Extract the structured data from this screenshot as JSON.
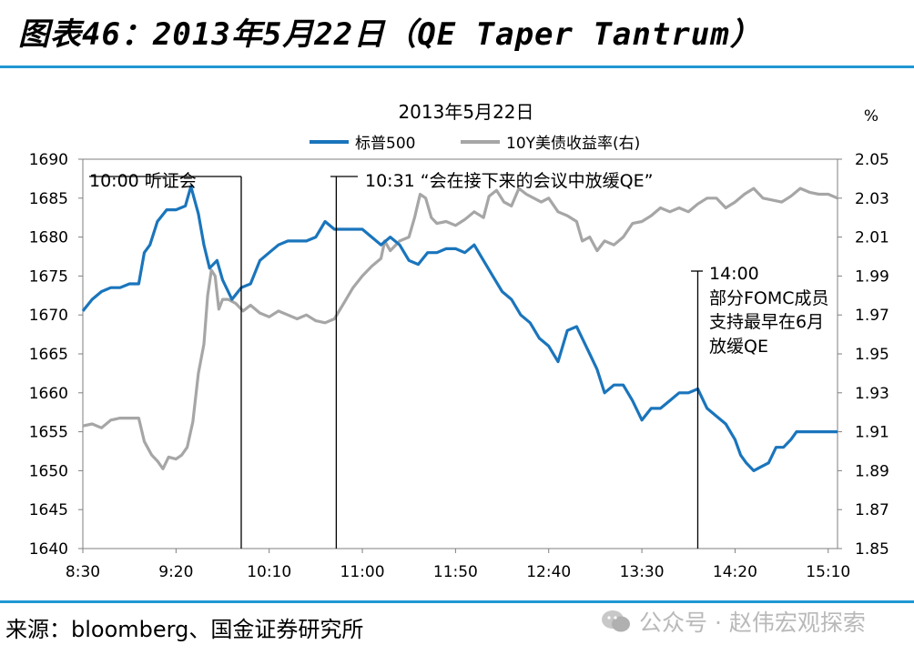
{
  "figure_title": "图表46：2013年5月22日（QE Taper Tantrum）",
  "source": "来源：bloomberg、国金证券研究所",
  "watermark": "公众号 · 赵伟宏观探索",
  "chart_data": {
    "type": "line",
    "title": "2013年5月22日",
    "y2_unit_label": "%",
    "x_tick_labels": [
      "8:30",
      "9:20",
      "10:10",
      "11:00",
      "11:50",
      "12:40",
      "13:30",
      "14:20",
      "15:10"
    ],
    "x_range_minutes": [
      510,
      915
    ],
    "y_left": {
      "min": 1640,
      "max": 1690,
      "ticks": [
        1640,
        1645,
        1650,
        1655,
        1660,
        1665,
        1670,
        1675,
        1680,
        1685,
        1690
      ]
    },
    "y_right": {
      "min": 1.85,
      "max": 2.05,
      "ticks": [
        "1.85",
        "1.87",
        "1.89",
        "1.91",
        "1.93",
        "1.95",
        "1.97",
        "1.99",
        "2.01",
        "2.03",
        "2.05"
      ]
    },
    "legend_position": "top-center",
    "series": [
      {
        "name": "标普500",
        "axis": "left",
        "color": "#1a75bc",
        "points": [
          [
            510,
            1670.5
          ],
          [
            515,
            1672
          ],
          [
            520,
            1673
          ],
          [
            525,
            1673.5
          ],
          [
            530,
            1673.5
          ],
          [
            535,
            1674
          ],
          [
            540,
            1674
          ],
          [
            543,
            1678
          ],
          [
            546,
            1679
          ],
          [
            550,
            1682
          ],
          [
            555,
            1683.5
          ],
          [
            560,
            1683.5
          ],
          [
            565,
            1684
          ],
          [
            568,
            1686.5
          ],
          [
            572,
            1683
          ],
          [
            575,
            1679
          ],
          [
            578,
            1676
          ],
          [
            582,
            1677
          ],
          [
            585,
            1674.5
          ],
          [
            590,
            1672
          ],
          [
            595,
            1673.5
          ],
          [
            600,
            1674
          ],
          [
            605,
            1677
          ],
          [
            610,
            1678
          ],
          [
            615,
            1679
          ],
          [
            620,
            1679.5
          ],
          [
            625,
            1679.5
          ],
          [
            630,
            1679.5
          ],
          [
            635,
            1680
          ],
          [
            640,
            1682
          ],
          [
            645,
            1681
          ],
          [
            650,
            1681
          ],
          [
            655,
            1681
          ],
          [
            660,
            1681
          ],
          [
            665,
            1680
          ],
          [
            670,
            1679
          ],
          [
            675,
            1680
          ],
          [
            680,
            1679
          ],
          [
            685,
            1677
          ],
          [
            690,
            1676.5
          ],
          [
            695,
            1678
          ],
          [
            700,
            1678
          ],
          [
            705,
            1678.5
          ],
          [
            710,
            1678.5
          ],
          [
            715,
            1678
          ],
          [
            720,
            1679
          ],
          [
            725,
            1677
          ],
          [
            730,
            1675
          ],
          [
            735,
            1673
          ],
          [
            740,
            1672
          ],
          [
            745,
            1670
          ],
          [
            750,
            1669
          ],
          [
            755,
            1667
          ],
          [
            760,
            1666
          ],
          [
            765,
            1664
          ],
          [
            770,
            1668
          ],
          [
            775,
            1668.5
          ],
          [
            778,
            1667
          ],
          [
            782,
            1665
          ],
          [
            786,
            1663
          ],
          [
            790,
            1660
          ],
          [
            795,
            1661
          ],
          [
            800,
            1661
          ],
          [
            805,
            1659
          ],
          [
            810,
            1656.5
          ],
          [
            815,
            1658
          ],
          [
            820,
            1658
          ],
          [
            825,
            1659
          ],
          [
            830,
            1660
          ],
          [
            835,
            1660
          ],
          [
            840,
            1660.5
          ],
          [
            845,
            1658
          ],
          [
            850,
            1657
          ],
          [
            855,
            1656
          ],
          [
            860,
            1654
          ],
          [
            863,
            1652
          ],
          [
            866,
            1651
          ],
          [
            870,
            1650
          ],
          [
            874,
            1650.5
          ],
          [
            878,
            1651
          ],
          [
            882,
            1653
          ],
          [
            886,
            1653
          ],
          [
            890,
            1654
          ],
          [
            893,
            1655
          ],
          [
            896,
            1655
          ],
          [
            900,
            1655
          ],
          [
            905,
            1655
          ],
          [
            910,
            1655
          ],
          [
            915,
            1655
          ]
        ]
      },
      {
        "name": "10Y美债收益率(右)",
        "axis": "right",
        "color": "#a6a6a6",
        "points": [
          [
            510,
            1.913
          ],
          [
            515,
            1.914
          ],
          [
            520,
            1.912
          ],
          [
            525,
            1.916
          ],
          [
            530,
            1.917
          ],
          [
            535,
            1.917
          ],
          [
            540,
            1.917
          ],
          [
            543,
            1.905
          ],
          [
            547,
            1.898
          ],
          [
            550,
            1.895
          ],
          [
            553,
            1.891
          ],
          [
            556,
            1.897
          ],
          [
            560,
            1.896
          ],
          [
            563,
            1.898
          ],
          [
            566,
            1.902
          ],
          [
            569,
            1.915
          ],
          [
            572,
            1.94
          ],
          [
            575,
            1.955
          ],
          [
            577,
            1.98
          ],
          [
            579,
            1.993
          ],
          [
            581,
            1.99
          ],
          [
            583,
            1.973
          ],
          [
            585,
            1.978
          ],
          [
            588,
            1.978
          ],
          [
            592,
            1.976
          ],
          [
            596,
            1.972
          ],
          [
            600,
            1.975
          ],
          [
            605,
            1.971
          ],
          [
            610,
            1.969
          ],
          [
            615,
            1.972
          ],
          [
            620,
            1.97
          ],
          [
            625,
            1.968
          ],
          [
            630,
            1.97
          ],
          [
            635,
            1.967
          ],
          [
            640,
            1.966
          ],
          [
            645,
            1.968
          ],
          [
            650,
            1.976
          ],
          [
            655,
            1.984
          ],
          [
            660,
            1.99
          ],
          [
            665,
            1.995
          ],
          [
            670,
            1.999
          ],
          [
            672,
            2.008
          ],
          [
            675,
            2.003
          ],
          [
            680,
            2.008
          ],
          [
            685,
            2.01
          ],
          [
            688,
            2.02
          ],
          [
            691,
            2.032
          ],
          [
            694,
            2.03
          ],
          [
            697,
            2.02
          ],
          [
            700,
            2.017
          ],
          [
            705,
            2.018
          ],
          [
            710,
            2.016
          ],
          [
            715,
            2.019
          ],
          [
            720,
            2.023
          ],
          [
            725,
            2.02
          ],
          [
            728,
            2.031
          ],
          [
            732,
            2.034
          ],
          [
            736,
            2.028
          ],
          [
            740,
            2.026
          ],
          [
            744,
            2.035
          ],
          [
            748,
            2.032
          ],
          [
            752,
            2.03
          ],
          [
            756,
            2.028
          ],
          [
            760,
            2.03
          ],
          [
            765,
            2.023
          ],
          [
            770,
            2.021
          ],
          [
            775,
            2.018
          ],
          [
            778,
            2.008
          ],
          [
            782,
            2.01
          ],
          [
            786,
            2.003
          ],
          [
            790,
            2.008
          ],
          [
            795,
            2.006
          ],
          [
            800,
            2.01
          ],
          [
            805,
            2.017
          ],
          [
            810,
            2.018
          ],
          [
            815,
            2.021
          ],
          [
            820,
            2.025
          ],
          [
            825,
            2.023
          ],
          [
            830,
            2.025
          ],
          [
            835,
            2.023
          ],
          [
            840,
            2.027
          ],
          [
            845,
            2.03
          ],
          [
            850,
            2.03
          ],
          [
            855,
            2.025
          ],
          [
            860,
            2.028
          ],
          [
            865,
            2.032
          ],
          [
            870,
            2.035
          ],
          [
            875,
            2.03
          ],
          [
            880,
            2.029
          ],
          [
            885,
            2.028
          ],
          [
            890,
            2.031
          ],
          [
            895,
            2.035
          ],
          [
            900,
            2.033
          ],
          [
            905,
            2.032
          ],
          [
            910,
            2.032
          ],
          [
            915,
            2.03
          ]
        ]
      }
    ],
    "annotations": [
      {
        "time": 595,
        "lines": [
          "10:00 听证会"
        ]
      },
      {
        "time": 646,
        "lines": [
          "10:31 “会在接下来的会议中放缓QE”"
        ]
      },
      {
        "time": 840,
        "lines": [
          "14:00",
          "部分FOMC成员",
          "支持最早在6月",
          "放缓QE"
        ]
      }
    ]
  }
}
